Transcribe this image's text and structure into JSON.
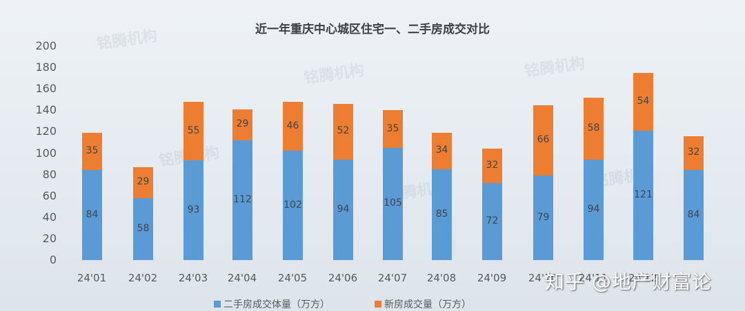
{
  "chart_data": {
    "type": "bar",
    "stacked": true,
    "title": "近一年重庆中心城区住宅一、二手房成交对比",
    "xlabel": "",
    "ylabel": "",
    "ylim": [
      0,
      200
    ],
    "yticks": [
      0,
      20,
      40,
      60,
      80,
      100,
      120,
      140,
      160,
      180,
      200
    ],
    "categories": [
      "24'01",
      "24'02",
      "24'03",
      "24'04",
      "24'05",
      "24'06",
      "24'07",
      "24'08",
      "24'09",
      "24'10",
      "24'11",
      "24'12"
    ],
    "series": [
      {
        "name": "二手房成交体量（万方）",
        "color": "#5b9bd5",
        "values": [
          84,
          58,
          93,
          112,
          102,
          94,
          105,
          85,
          72,
          79,
          94,
          121
        ]
      },
      {
        "name": "新房成交量（万方）",
        "color": "#ed7d31",
        "values": [
          35,
          29,
          55,
          29,
          46,
          52,
          35,
          34,
          32,
          66,
          58,
          54
        ]
      }
    ],
    "extra_bar_note": "13th bar at far right shows 84 / 32",
    "legend_position": "bottom",
    "grid": false
  },
  "extra_bar": {
    "blue": 84,
    "orange": 32
  },
  "title": "近一年重庆中心城区住宅一、二手房成交对比",
  "legend": {
    "blue_label": "二手房成交体量（万方）",
    "orange_label": "新房成交量（万方）"
  },
  "watermark": "知乎 @地产财富论",
  "ghost_watermark": "铭腾机构"
}
